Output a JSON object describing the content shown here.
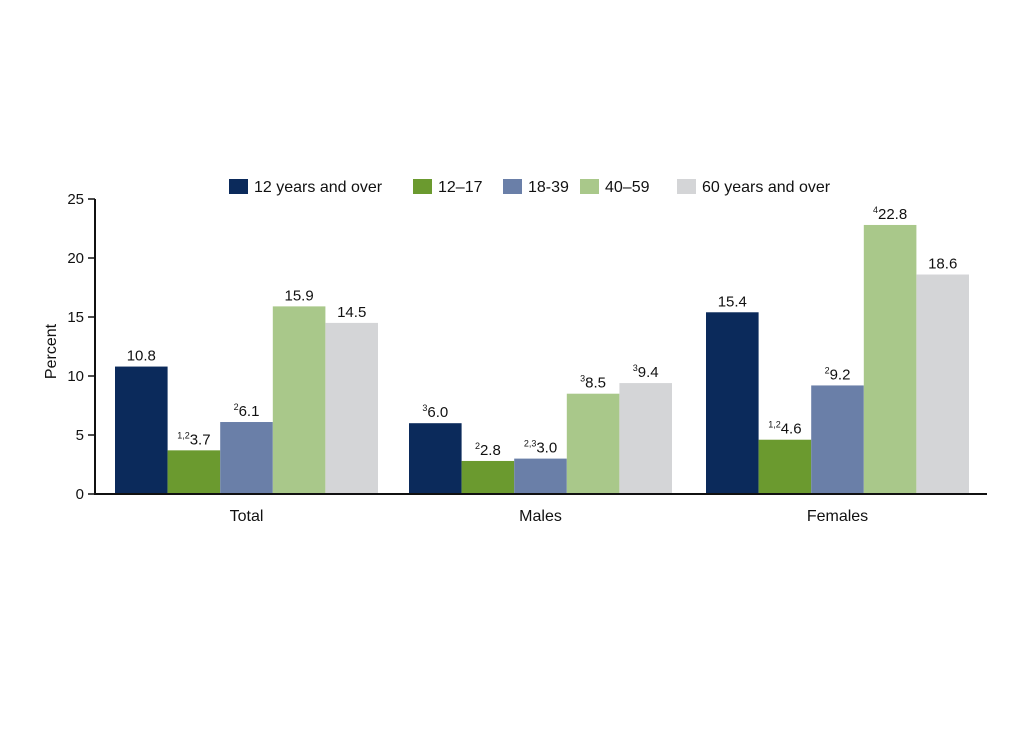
{
  "chart_data": {
    "type": "bar",
    "title": "",
    "xlabel": "",
    "ylabel": "Percent",
    "ylim": [
      0,
      25
    ],
    "yticks": [
      0,
      5,
      10,
      15,
      20,
      25
    ],
    "grid": false,
    "legend_position": "top",
    "categories": [
      "Total",
      "Males",
      "Females"
    ],
    "series": [
      {
        "name": "12 years and over",
        "color": "#0b2a5b",
        "values": [
          10.8,
          6.0,
          15.4
        ],
        "labels": [
          "10.8",
          "6.0",
          "15.4"
        ],
        "superscripts": [
          "",
          "3",
          ""
        ]
      },
      {
        "name": "12–17",
        "color": "#6b9a2f",
        "values": [
          3.7,
          2.8,
          4.6
        ],
        "labels": [
          "3.7",
          "2.8",
          "4.6"
        ],
        "superscripts": [
          "1,2",
          "2",
          "1,2"
        ]
      },
      {
        "name": "18-39",
        "color": "#6a7fa8",
        "values": [
          6.1,
          3.0,
          9.2
        ],
        "labels": [
          "6.1",
          "3.0",
          "9.2"
        ],
        "superscripts": [
          "2",
          "2,3",
          "2"
        ]
      },
      {
        "name": "40–59",
        "color": "#a9c88a",
        "values": [
          15.9,
          8.5,
          22.8
        ],
        "labels": [
          "15.9",
          "8.5",
          "22.8"
        ],
        "superscripts": [
          "",
          "3",
          "4"
        ]
      },
      {
        "name": "60 years and over",
        "color": "#d4d5d7",
        "values": [
          14.5,
          9.4,
          18.6
        ],
        "labels": [
          "14.5",
          "9.4",
          "18.6"
        ],
        "superscripts": [
          "",
          "3",
          ""
        ]
      }
    ]
  }
}
